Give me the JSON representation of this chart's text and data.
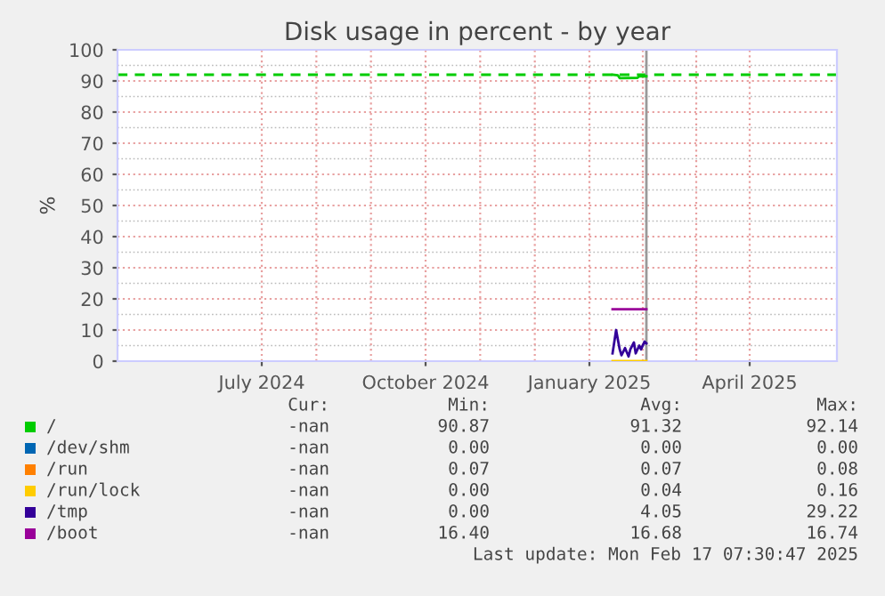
{
  "chart_data": {
    "type": "line",
    "title": "Disk usage in percent - by year",
    "ylabel": "%",
    "xlim": [
      "2024-04-11",
      "2025-05-20"
    ],
    "xticks": [
      {
        "value": "2024-07-01",
        "label": "July 2024"
      },
      {
        "value": "2024-10-01",
        "label": "October 2024"
      },
      {
        "value": "2025-01-01",
        "label": "January 2025"
      },
      {
        "value": "2025-04-01",
        "label": "April 2025"
      }
    ],
    "ylim": [
      0,
      100
    ],
    "yticks": [
      0,
      10,
      20,
      30,
      40,
      50,
      60,
      70,
      80,
      90,
      100
    ],
    "grid": true,
    "legend": "bottom",
    "line_style": "solid",
    "marker": "none",
    "series": [
      {
        "name": "/",
        "color": "#00cc00",
        "x": [
          "2025-01-14",
          "2025-01-17",
          "2025-01-18",
          "2025-01-28",
          "2025-01-29",
          "2025-02-02"
        ],
        "values": [
          92.0,
          91.8,
          90.9,
          91.0,
          91.5,
          91.5
        ]
      },
      {
        "name": "/dev/shm",
        "color": "#0066b3"
      },
      {
        "name": "/run",
        "color": "#ff8000"
      },
      {
        "name": "/run/lock",
        "color": "#ffcc00",
        "x": [
          "2025-01-14",
          "2025-02-02"
        ],
        "values": [
          0,
          0
        ]
      },
      {
        "name": "/tmp",
        "color": "#330099",
        "x": [
          "2025-01-14",
          "2025-01-16",
          "2025-01-18",
          "2025-01-19",
          "2025-01-21",
          "2025-01-23",
          "2025-01-24",
          "2025-01-26",
          "2025-01-27",
          "2025-01-29",
          "2025-01-30",
          "2025-02-01",
          "2025-02-02"
        ],
        "values": [
          2.5,
          10,
          3.8,
          1.9,
          4.2,
          1.5,
          3.8,
          6,
          2.5,
          5,
          3.8,
          6.3,
          5.7
        ]
      },
      {
        "name": "/boot",
        "color": "#990099",
        "x": [
          "2025-01-14",
          "2025-02-02"
        ],
        "values": [
          16.7,
          16.7
        ]
      }
    ],
    "ref_lines": [
      {
        "axis": "y",
        "value": 92,
        "color": "#00cc00",
        "line_style": "dashed"
      },
      {
        "axis": "x",
        "value": "2025-02-02",
        "color": "#999999",
        "line_style": "solid"
      }
    ],
    "annotations": [
      "Cur:",
      "Min:",
      "Avg:",
      "Max:",
      "-nan",
      "90.87",
      "91.32",
      "92.14",
      "-nan",
      "0.00",
      "0.00",
      "0.00",
      "-nan",
      "0.07",
      "0.07",
      "0.08",
      "-nan",
      "0.00",
      "0.04",
      "0.16",
      "-nan",
      "0.00",
      "4.05",
      "29.22",
      "-nan",
      "16.40",
      "16.68",
      "16.74",
      "Last update: Mon Feb 17 07:30:47 2025"
    ]
  }
}
